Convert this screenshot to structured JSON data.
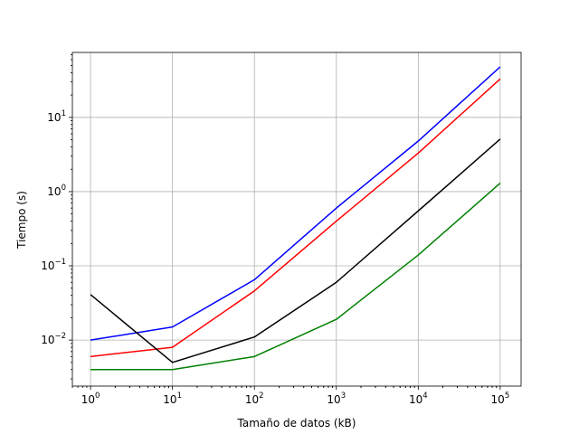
{
  "chart_data": {
    "type": "line",
    "title": "",
    "xlabel": "Tamaño de datos (kB)",
    "ylabel": "Tiempo (s)",
    "xscale": "log",
    "yscale": "log",
    "grid": true,
    "xlim": [
      0.6,
      180000
    ],
    "ylim": [
      0.0024,
      75
    ],
    "x": [
      1,
      10,
      100,
      1000,
      10000,
      100000
    ],
    "x_tick_labels": [
      {
        "base": "10",
        "exp": "0"
      },
      {
        "base": "10",
        "exp": "1"
      },
      {
        "base": "10",
        "exp": "2"
      },
      {
        "base": "10",
        "exp": "3"
      },
      {
        "base": "10",
        "exp": "4"
      },
      {
        "base": "10",
        "exp": "5"
      }
    ],
    "y_tick_labels": [
      {
        "base": "10",
        "exp": "−2"
      },
      {
        "base": "10",
        "exp": "−1"
      },
      {
        "base": "10",
        "exp": "0"
      },
      {
        "base": "10",
        "exp": "1"
      }
    ],
    "y_ticks": [
      0.01,
      0.1,
      1,
      10
    ],
    "series": [
      {
        "color": "#0000ff",
        "values": [
          0.01,
          0.015,
          0.065,
          0.6,
          4.8,
          48
        ]
      },
      {
        "color": "#ff0000",
        "values": [
          0.006,
          0.008,
          0.046,
          0.4,
          3.3,
          33
        ]
      },
      {
        "color": "#000000",
        "values": [
          0.041,
          0.005,
          0.011,
          0.06,
          0.55,
          5.1
        ]
      },
      {
        "color": "#008000",
        "values": [
          0.004,
          0.004,
          0.006,
          0.019,
          0.14,
          1.3
        ]
      }
    ]
  }
}
